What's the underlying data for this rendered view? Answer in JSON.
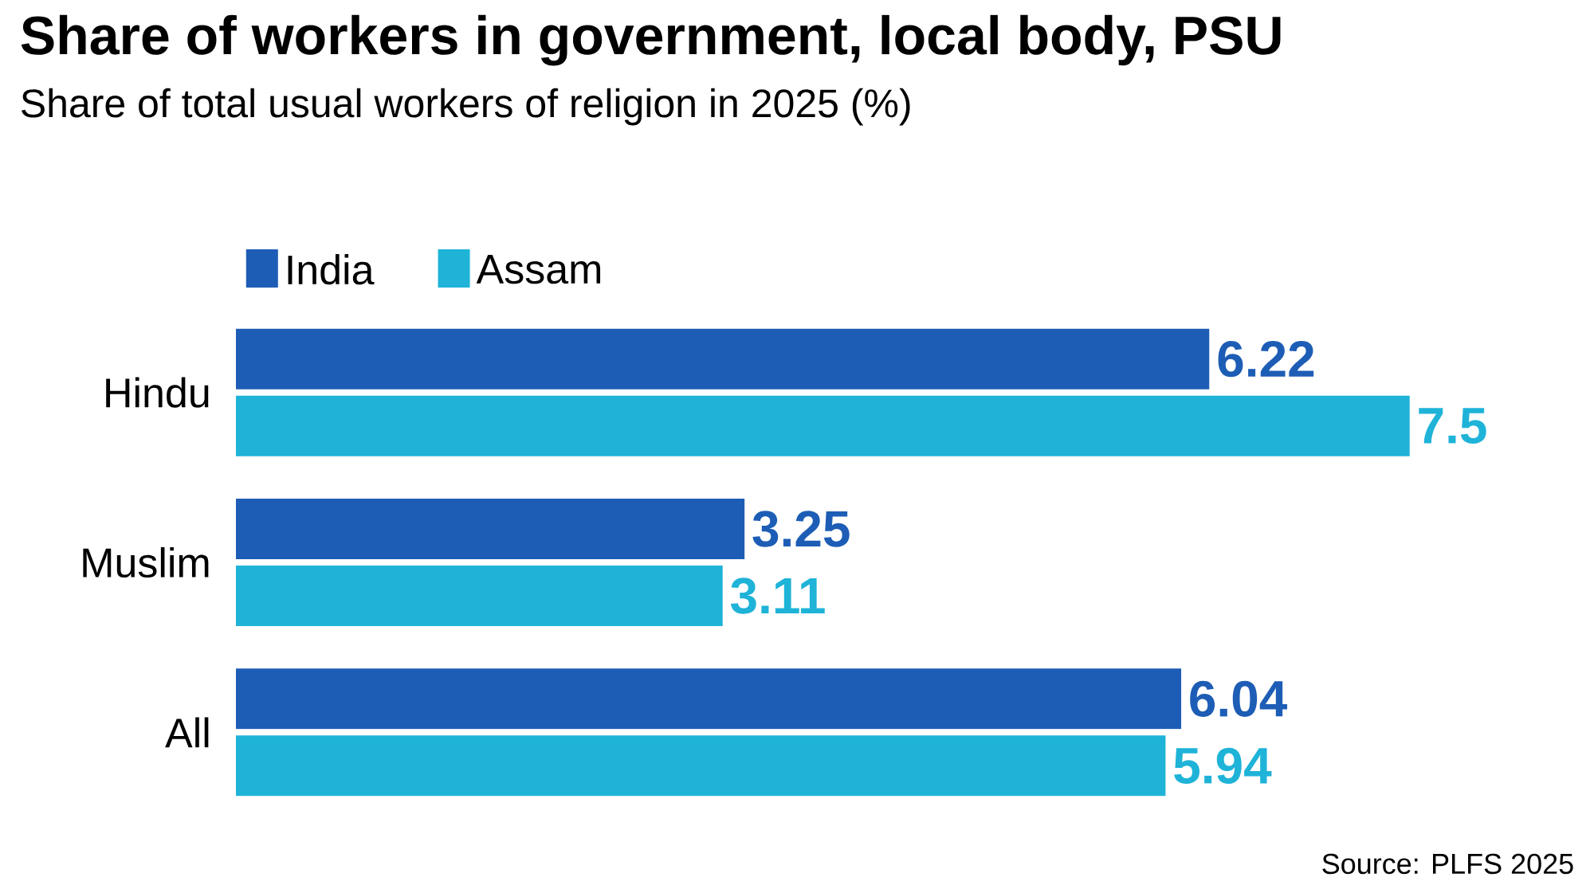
{
  "chart_data": {
    "type": "bar",
    "orientation": "horizontal",
    "title": "Share of workers in government, local body, PSU",
    "subtitle": "Share of total usual workers of religion in 2025 (%)",
    "categories": [
      "Hindu",
      "Muslim",
      "All"
    ],
    "series": [
      {
        "name": "India",
        "color": "#1d5db5",
        "values": [
          6.22,
          3.25,
          6.04
        ]
      },
      {
        "name": "Assam",
        "color": "#1fb3d8",
        "values": [
          7.5,
          3.11,
          5.94
        ]
      }
    ],
    "tick_labels": "y",
    "data_labels": true,
    "legend": "top left",
    "grid": false,
    "annotations": [
      "Source: PLFS 2025"
    ]
  }
}
